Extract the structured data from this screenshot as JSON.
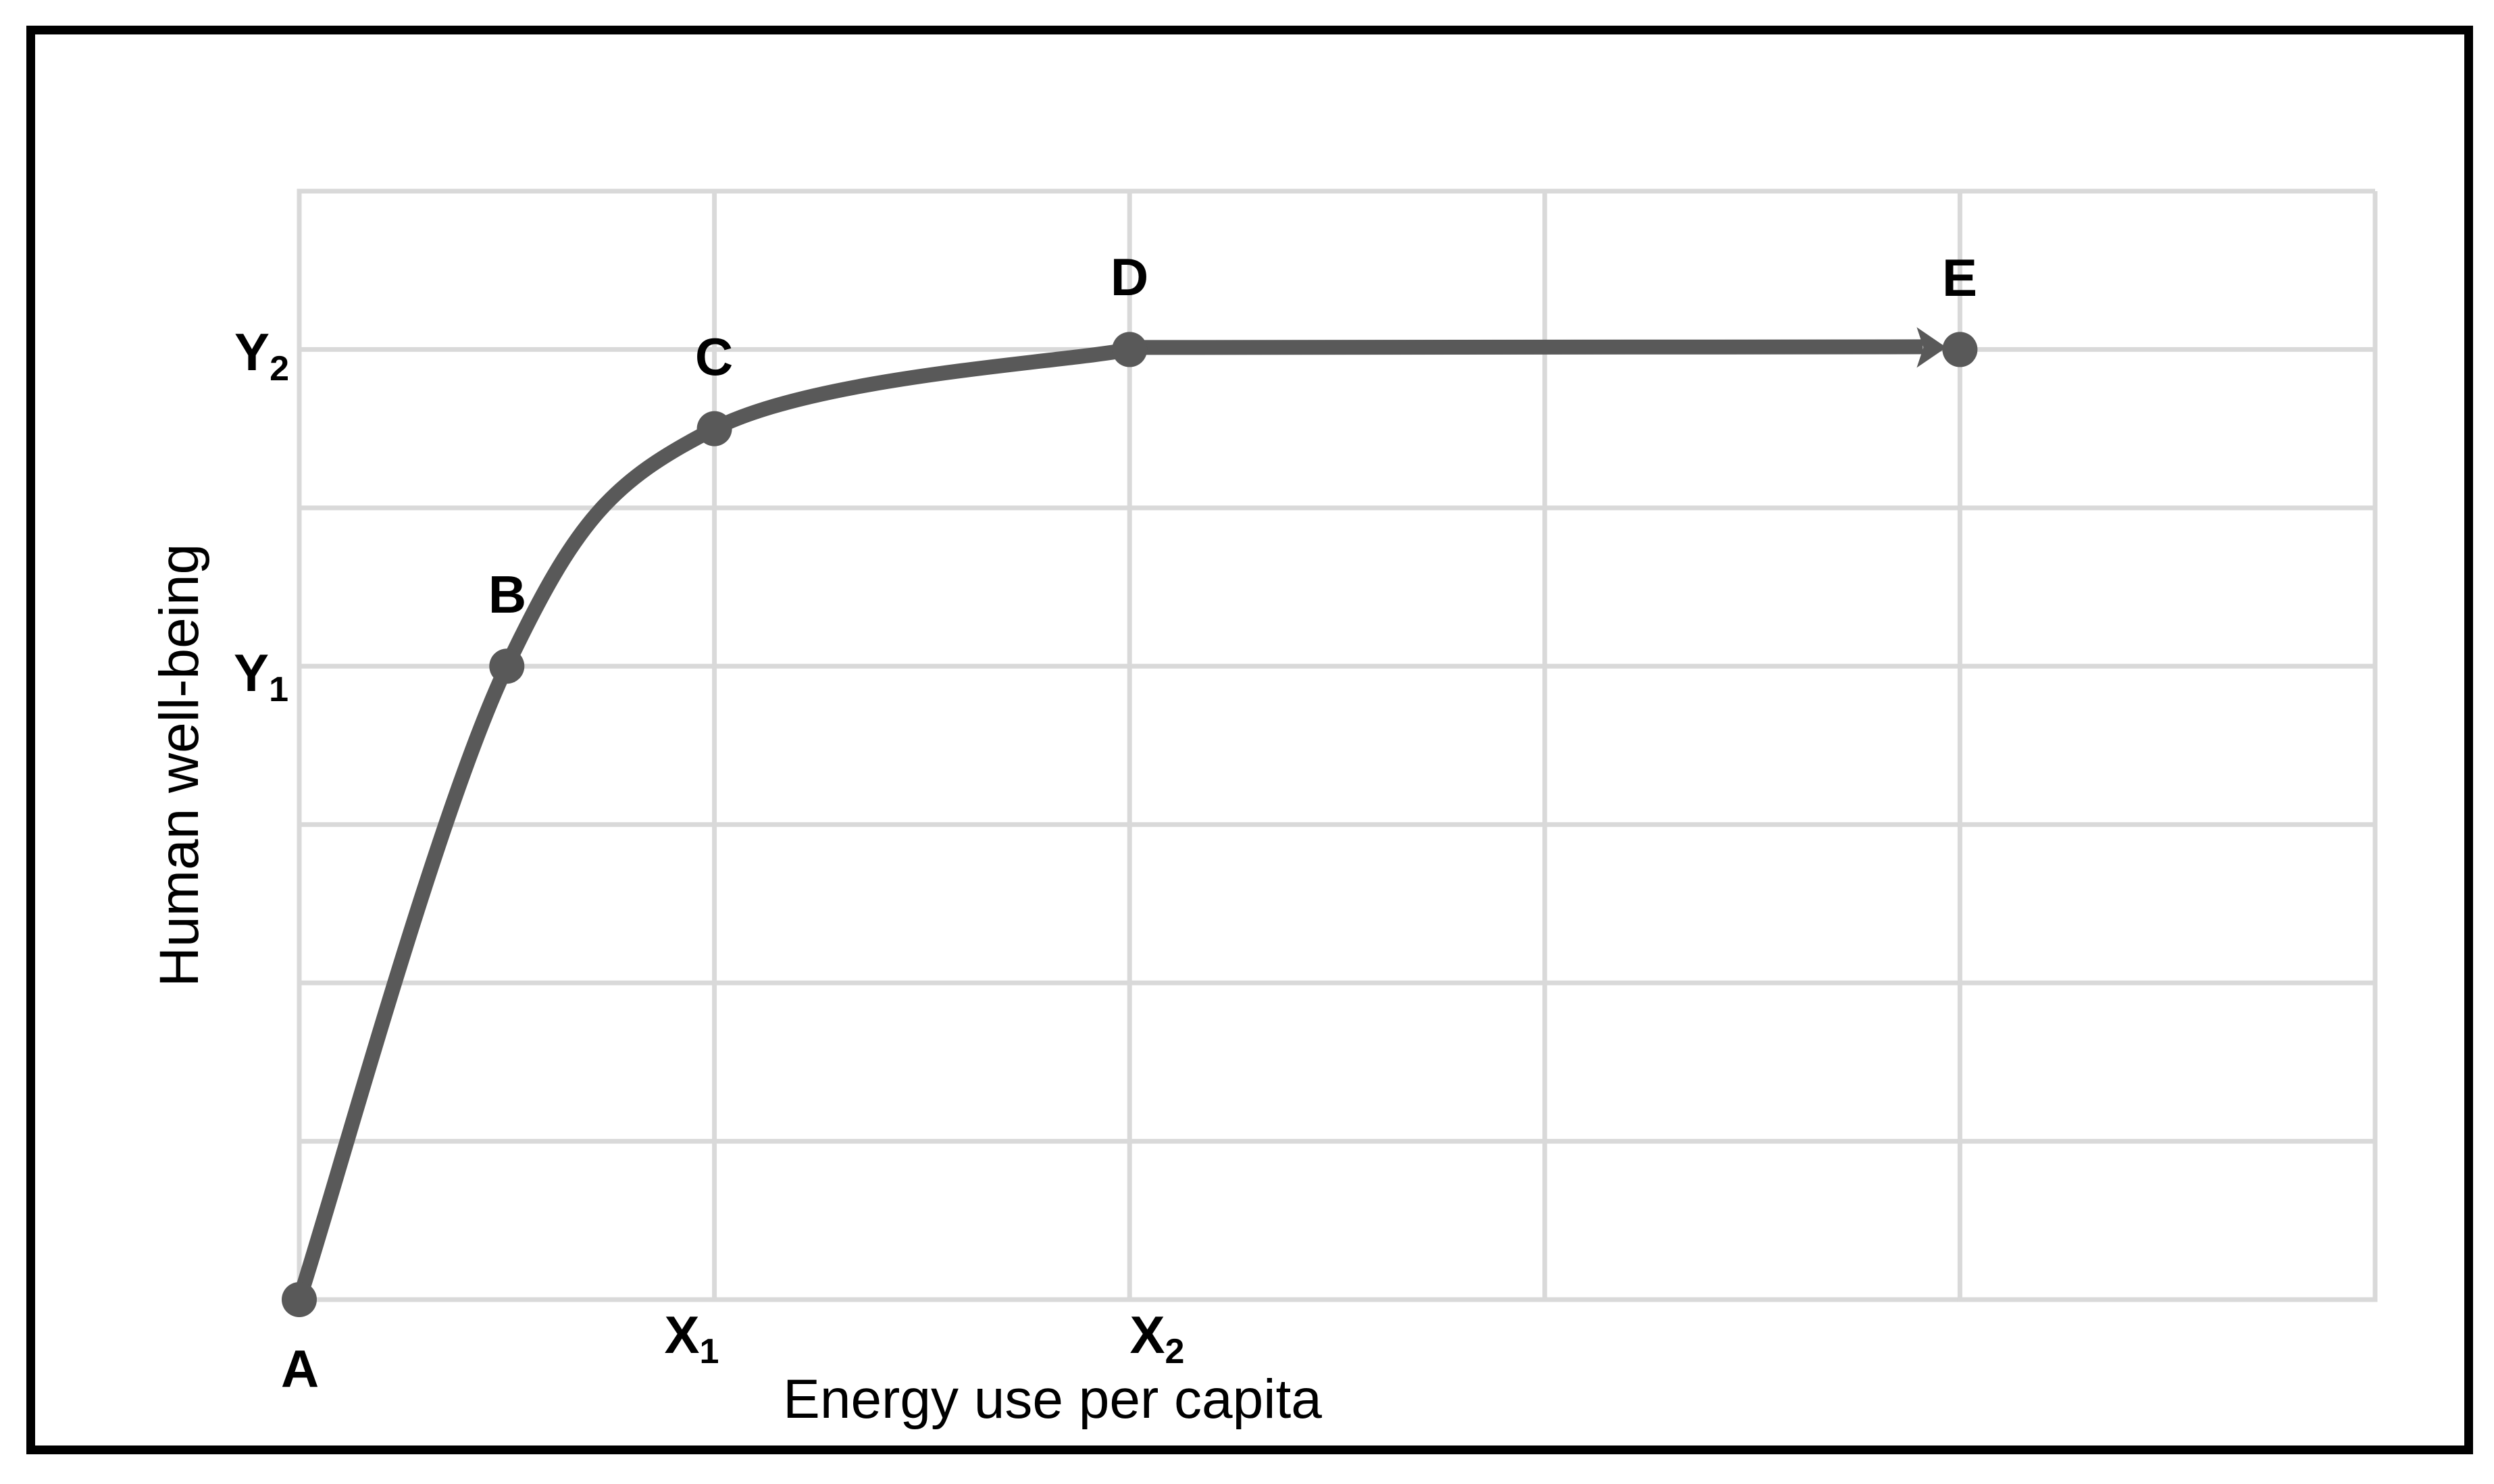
{
  "figure": {
    "background_color": "#ffffff",
    "frame_color": "#000000",
    "gridline_color": "#d9d9d9",
    "curve_color": "#595959",
    "label_color": "#000000"
  },
  "chart_data": {
    "type": "line",
    "title": "",
    "xlabel": "Energy use per capita",
    "ylabel": "Human well-being",
    "xlim": [
      0,
      5
    ],
    "ylim": [
      0,
      7
    ],
    "grid": "on",
    "legend": "none",
    "description": "Saturating curve: human well-being rises steeply with energy use per capita, then plateaus; arrow continues from D to E along the plateau.",
    "series": [
      {
        "name": "well-being-curve",
        "color": "#595959",
        "points": [
          {
            "label": "A",
            "x": 0,
            "y": 0
          },
          {
            "label": "B",
            "x": 0.5,
            "y": 4
          },
          {
            "label": "C",
            "x": 1,
            "y": 5.5
          },
          {
            "label": "D",
            "x": 2,
            "y": 6
          },
          {
            "label": "E",
            "x": 4,
            "y": 6
          }
        ],
        "arrow_segment": {
          "from": "D",
          "to": "E"
        }
      }
    ],
    "y_ticks": [
      {
        "main": "Y",
        "sub": "2",
        "value": 6
      },
      {
        "main": "Y",
        "sub": "1",
        "value": 4
      }
    ],
    "x_ticks": [
      {
        "main": "X",
        "sub": "1",
        "value": 1
      },
      {
        "main": "X",
        "sub": "2",
        "value": 2
      }
    ],
    "point_labels": [
      "A",
      "B",
      "C",
      "D",
      "E"
    ]
  }
}
